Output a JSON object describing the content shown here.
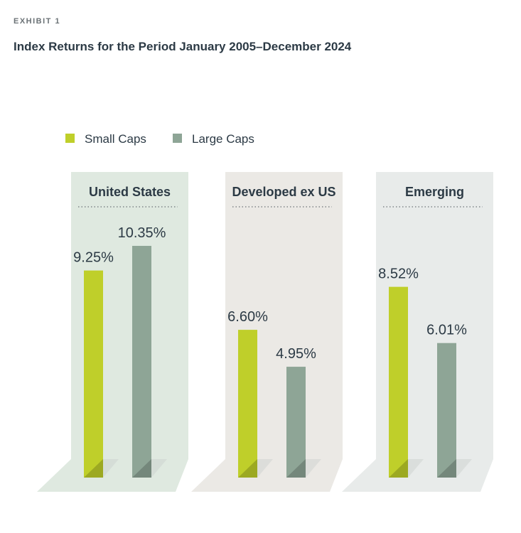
{
  "exhibit_label": "EXHIBIT 1",
  "title": "Index Returns for the Period January 2005–December 2024",
  "chart_data": {
    "type": "bar",
    "title": "Index Returns for the Period January 2005–December 2024",
    "legend_position": "top-left",
    "unit": "%",
    "series": [
      {
        "name": "Small Caps",
        "color": "#bfcf2a",
        "values": [
          9.25,
          6.6,
          8.52
        ]
      },
      {
        "name": "Large Caps",
        "color": "#8ea596",
        "values": [
          10.35,
          4.95,
          6.01
        ]
      }
    ],
    "categories": [
      "United States",
      "Developed ex US",
      "Emerging"
    ],
    "value_labels": [
      [
        "9.25%",
        "10.35%"
      ],
      [
        "6.60%",
        "4.95%"
      ],
      [
        "8.52%",
        "6.01%"
      ]
    ],
    "panel_colors": [
      "#dfe9e0",
      "#ebe9e5",
      "#e8ebea"
    ],
    "ylim": [
      0,
      12
    ]
  }
}
